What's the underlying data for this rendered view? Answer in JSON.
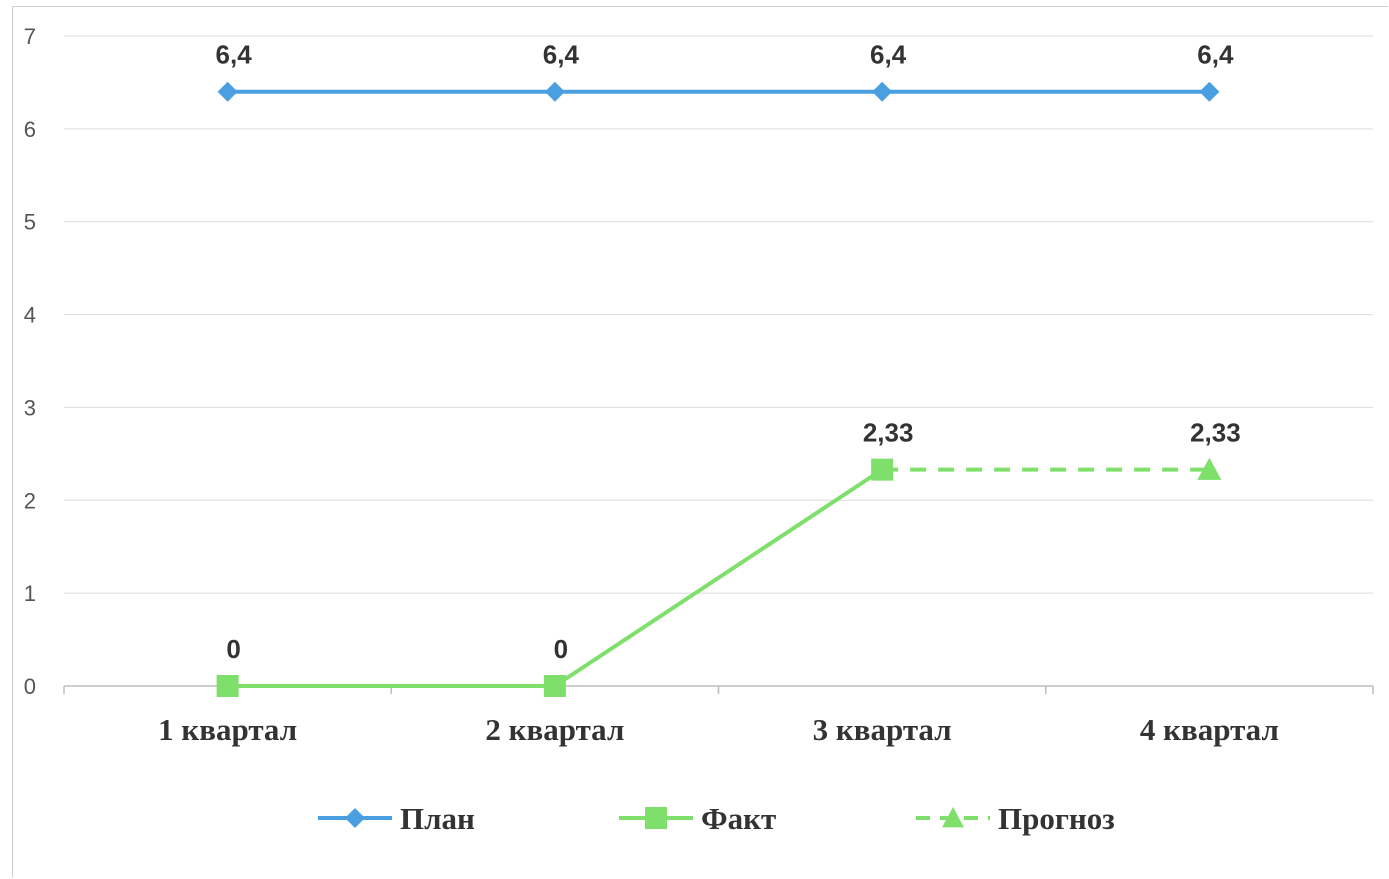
{
  "chart_data": {
    "type": "line",
    "title": "",
    "xlabel": "",
    "ylabel": "",
    "categories": [
      "1 квартал",
      "2 квартал",
      "3 квартал",
      "4 квартал"
    ],
    "ylim": [
      0,
      7
    ],
    "yticks": [
      0,
      1,
      2,
      3,
      4,
      5,
      6,
      7
    ],
    "grid": true,
    "legend_position": "bottom",
    "series": [
      {
        "name": "План",
        "values": [
          6.4,
          6.4,
          6.4,
          6.4
        ],
        "labels": [
          "6,4",
          "6,4",
          "6,4",
          "6,4"
        ],
        "color": "#4a9fe0",
        "marker": "diamond",
        "dash": "solid"
      },
      {
        "name": "Факт",
        "values": [
          0,
          0,
          2.33,
          null
        ],
        "labels": [
          "0",
          "0",
          "2,33",
          ""
        ],
        "color": "#7ee06a",
        "marker": "square",
        "dash": "solid"
      },
      {
        "name": "Прогноз",
        "values": [
          null,
          null,
          2.33,
          2.33
        ],
        "labels": [
          "",
          "",
          "",
          "2,33"
        ],
        "color": "#7ee06a",
        "marker": "triangle",
        "dash": "dashed"
      }
    ]
  }
}
